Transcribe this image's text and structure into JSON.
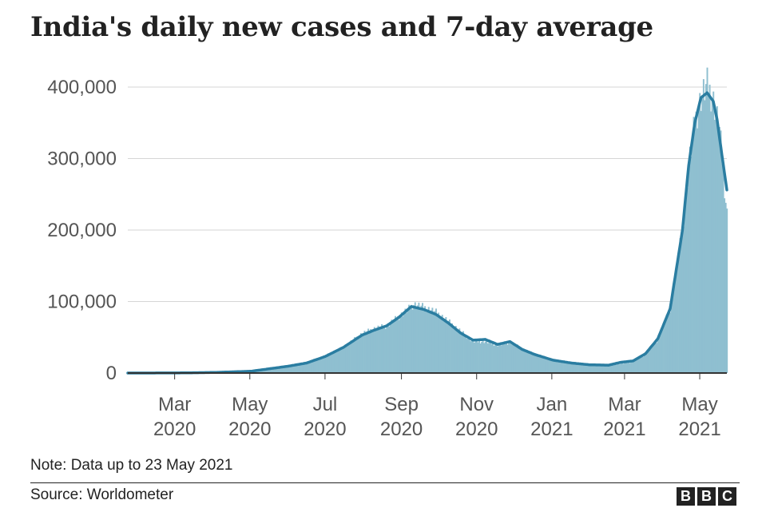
{
  "chart_data": {
    "type": "area",
    "title": "India's daily new cases and 7-day average",
    "xlabel": "",
    "ylabel": "",
    "ylim": [
      0,
      410000
    ],
    "yticks": [
      0,
      100000,
      200000,
      300000,
      400000
    ],
    "ytick_labels": [
      "0",
      "100,000",
      "200,000",
      "300,000",
      "400,000"
    ],
    "x_range_days": [
      0,
      486
    ],
    "x_start_date": "2020-01-23",
    "x_end_date": "2021-05-23",
    "xtick_days": [
      38,
      99,
      160,
      222,
      283,
      344,
      403,
      464
    ],
    "xtick_labels": [
      [
        "Mar",
        "2020"
      ],
      [
        "May",
        "2020"
      ],
      [
        "Jul",
        "2020"
      ],
      [
        "Sep",
        "2020"
      ],
      [
        "Nov",
        "2020"
      ],
      [
        "Jan",
        "2021"
      ],
      [
        "Mar",
        "2021"
      ],
      [
        "May",
        "2021"
      ]
    ],
    "series": [
      {
        "name": "Daily new cases",
        "style": "bars",
        "color": "#8fbfd0",
        "x": [
          0,
          40,
          70,
          100,
          115,
          130,
          145,
          160,
          175,
          190,
          200,
          210,
          220,
          228,
          232,
          240,
          250,
          260,
          270,
          280,
          290,
          300,
          310,
          320,
          330,
          345,
          360,
          375,
          390,
          400,
          410,
          420,
          430,
          440,
          450,
          455,
          460,
          465,
          470,
          475,
          480,
          484,
          486
        ],
        "values": [
          0,
          200,
          1000,
          3000,
          7000,
          10000,
          15000,
          24000,
          36000,
          55000,
          62000,
          66000,
          79000,
          90000,
          96000,
          92000,
          85000,
          72000,
          58000,
          44000,
          44000,
          39000,
          43000,
          34000,
          26000,
          18000,
          14000,
          11000,
          10000,
          13000,
          16000,
          26000,
          47000,
          90000,
          200000,
          290000,
          350000,
          385000,
          403000,
          380000,
          340000,
          260000,
          222000
        ]
      },
      {
        "name": "7-day average",
        "style": "line",
        "color": "#2a7da1",
        "x": [
          0,
          40,
          70,
          100,
          115,
          130,
          145,
          160,
          175,
          190,
          200,
          210,
          220,
          230,
          240,
          250,
          260,
          270,
          280,
          290,
          300,
          310,
          320,
          330,
          345,
          360,
          375,
          390,
          400,
          410,
          420,
          430,
          440,
          450,
          455,
          460,
          465,
          470,
          475,
          478,
          482,
          486
        ],
        "values": [
          0,
          100,
          800,
          2500,
          6000,
          9500,
          14000,
          23000,
          36000,
          53000,
          60000,
          66000,
          78000,
          93000,
          89000,
          82000,
          70000,
          56000,
          46000,
          47000,
          40000,
          44000,
          33000,
          26000,
          18000,
          14000,
          11500,
          11000,
          15000,
          17000,
          27000,
          48000,
          90000,
          200000,
          290000,
          350000,
          385000,
          392000,
          380000,
          355000,
          305000,
          256000
        ]
      }
    ],
    "note": "Note: Data up to 23 May 2021",
    "source": "Source: Worldometer",
    "logo": [
      "B",
      "B",
      "C"
    ]
  }
}
